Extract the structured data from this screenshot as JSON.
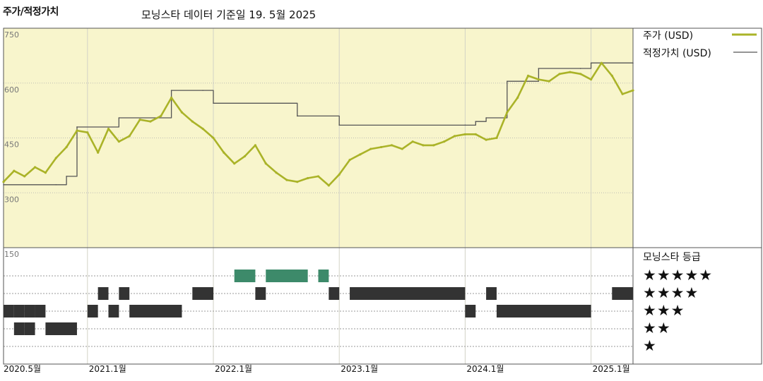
{
  "header": {
    "y_axis_title": "주가/적정가치",
    "subtitle": "모닝스타 데이터 기준일 19. 5월 2025"
  },
  "legend": {
    "price_label": "주가 (USD)",
    "fair_label": "적정가치 (USD)",
    "rating_title": "모닝스타 등급"
  },
  "colors": {
    "price": "#aab328",
    "fair": "#555555",
    "plot_bg": "#f8f5cc",
    "rating_5": "#3d8a6a",
    "rating_dark": "#333333"
  },
  "chart_data": [
    {
      "type": "line",
      "ylim": [
        150,
        750
      ],
      "yticks": [
        "750",
        "600",
        "450",
        "300",
        "150"
      ],
      "x_labels": [
        "2020.5월",
        "2021.1월",
        "2022.1월",
        "2023.1월",
        "2024.1월",
        "2025.1월"
      ],
      "x_label_dates": [
        "2020-05",
        "2021-01",
        "2022-01",
        "2023-01",
        "2024-01",
        "2025-01"
      ],
      "x_range": [
        "2020-05",
        "2025-05"
      ],
      "grid": true,
      "legend_position": "right",
      "series": [
        {
          "name": "주가 (USD)",
          "color": "#aab328",
          "x": [
            "2020-05",
            "2020-06",
            "2020-07",
            "2020-08",
            "2020-09",
            "2020-10",
            "2020-11",
            "2020-12",
            "2021-01",
            "2021-02",
            "2021-03",
            "2021-04",
            "2021-05",
            "2021-06",
            "2021-07",
            "2021-08",
            "2021-09",
            "2021-10",
            "2021-11",
            "2021-12",
            "2022-01",
            "2022-02",
            "2022-03",
            "2022-04",
            "2022-05",
            "2022-06",
            "2022-07",
            "2022-08",
            "2022-09",
            "2022-10",
            "2022-11",
            "2022-12",
            "2023-01",
            "2023-02",
            "2023-03",
            "2023-04",
            "2023-05",
            "2023-06",
            "2023-07",
            "2023-08",
            "2023-09",
            "2023-10",
            "2023-11",
            "2023-12",
            "2024-01",
            "2024-02",
            "2024-03",
            "2024-04",
            "2024-05",
            "2024-06",
            "2024-07",
            "2024-08",
            "2024-09",
            "2024-10",
            "2024-11",
            "2024-12",
            "2025-01",
            "2025-02",
            "2025-03",
            "2025-04",
            "2025-05"
          ],
          "y": [
            330,
            360,
            345,
            370,
            355,
            395,
            425,
            470,
            465,
            410,
            475,
            440,
            455,
            500,
            495,
            510,
            560,
            520,
            495,
            475,
            450,
            410,
            380,
            400,
            430,
            380,
            355,
            335,
            330,
            340,
            345,
            320,
            350,
            390,
            405,
            420,
            425,
            430,
            420,
            440,
            430,
            430,
            440,
            455,
            460,
            460,
            445,
            450,
            520,
            560,
            620,
            610,
            605,
            625,
            630,
            625,
            610,
            655,
            620,
            570,
            580
          ]
        },
        {
          "name": "적정가치 (USD)",
          "color": "#555555",
          "x": [
            "2020-05",
            "2020-10",
            "2020-11",
            "2020-12",
            "2021-04",
            "2021-09",
            "2021-12",
            "2022-01",
            "2022-09",
            "2023-01",
            "2024-01",
            "2024-02",
            "2024-03",
            "2024-05",
            "2024-08",
            "2024-12",
            "2025-01",
            "2025-05"
          ],
          "y": [
            322,
            322,
            345,
            480,
            505,
            580,
            580,
            545,
            510,
            485,
            485,
            495,
            505,
            605,
            640,
            640,
            655,
            655
          ]
        }
      ]
    },
    {
      "type": "heatmap",
      "title": "모닝스타 등급",
      "levels": [
        "★★★★★",
        "★★★★",
        "★★★",
        "★★",
        "★"
      ],
      "periods": [
        {
          "rating": 3,
          "start": "2020-05",
          "end": "2020-06"
        },
        {
          "rating": 3,
          "start": "2020-06",
          "end": "2020-07"
        },
        {
          "rating": 2,
          "start": "2020-06",
          "end": "2020-07"
        },
        {
          "rating": 3,
          "start": "2020-07",
          "end": "2020-08"
        },
        {
          "rating": 2,
          "start": "2020-07",
          "end": "2020-08"
        },
        {
          "rating": 3,
          "start": "2020-08",
          "end": "2020-09"
        },
        {
          "rating": 2,
          "start": "2020-09",
          "end": "2020-12"
        },
        {
          "rating": 3,
          "start": "2021-01",
          "end": "2021-02"
        },
        {
          "rating": 4,
          "start": "2021-02",
          "end": "2021-03"
        },
        {
          "rating": 3,
          "start": "2021-03",
          "end": "2021-04"
        },
        {
          "rating": 4,
          "start": "2021-04",
          "end": "2021-05"
        },
        {
          "rating": 3,
          "start": "2021-05",
          "end": "2021-10"
        },
        {
          "rating": 4,
          "start": "2021-11",
          "end": "2022-01"
        },
        {
          "rating": 5,
          "start": "2022-03",
          "end": "2022-05"
        },
        {
          "rating": 4,
          "start": "2022-05",
          "end": "2022-06"
        },
        {
          "rating": 5,
          "start": "2022-06",
          "end": "2022-10"
        },
        {
          "rating": 5,
          "start": "2022-11",
          "end": "2022-12"
        },
        {
          "rating": 4,
          "start": "2022-12",
          "end": "2023-01"
        },
        {
          "rating": 4,
          "start": "2023-02",
          "end": "2024-01"
        },
        {
          "rating": 3,
          "start": "2024-01",
          "end": "2024-02"
        },
        {
          "rating": 4,
          "start": "2024-03",
          "end": "2024-04"
        },
        {
          "rating": 3,
          "start": "2024-04",
          "end": "2025-01"
        },
        {
          "rating": 4,
          "start": "2025-03",
          "end": "2025-05"
        }
      ]
    }
  ]
}
